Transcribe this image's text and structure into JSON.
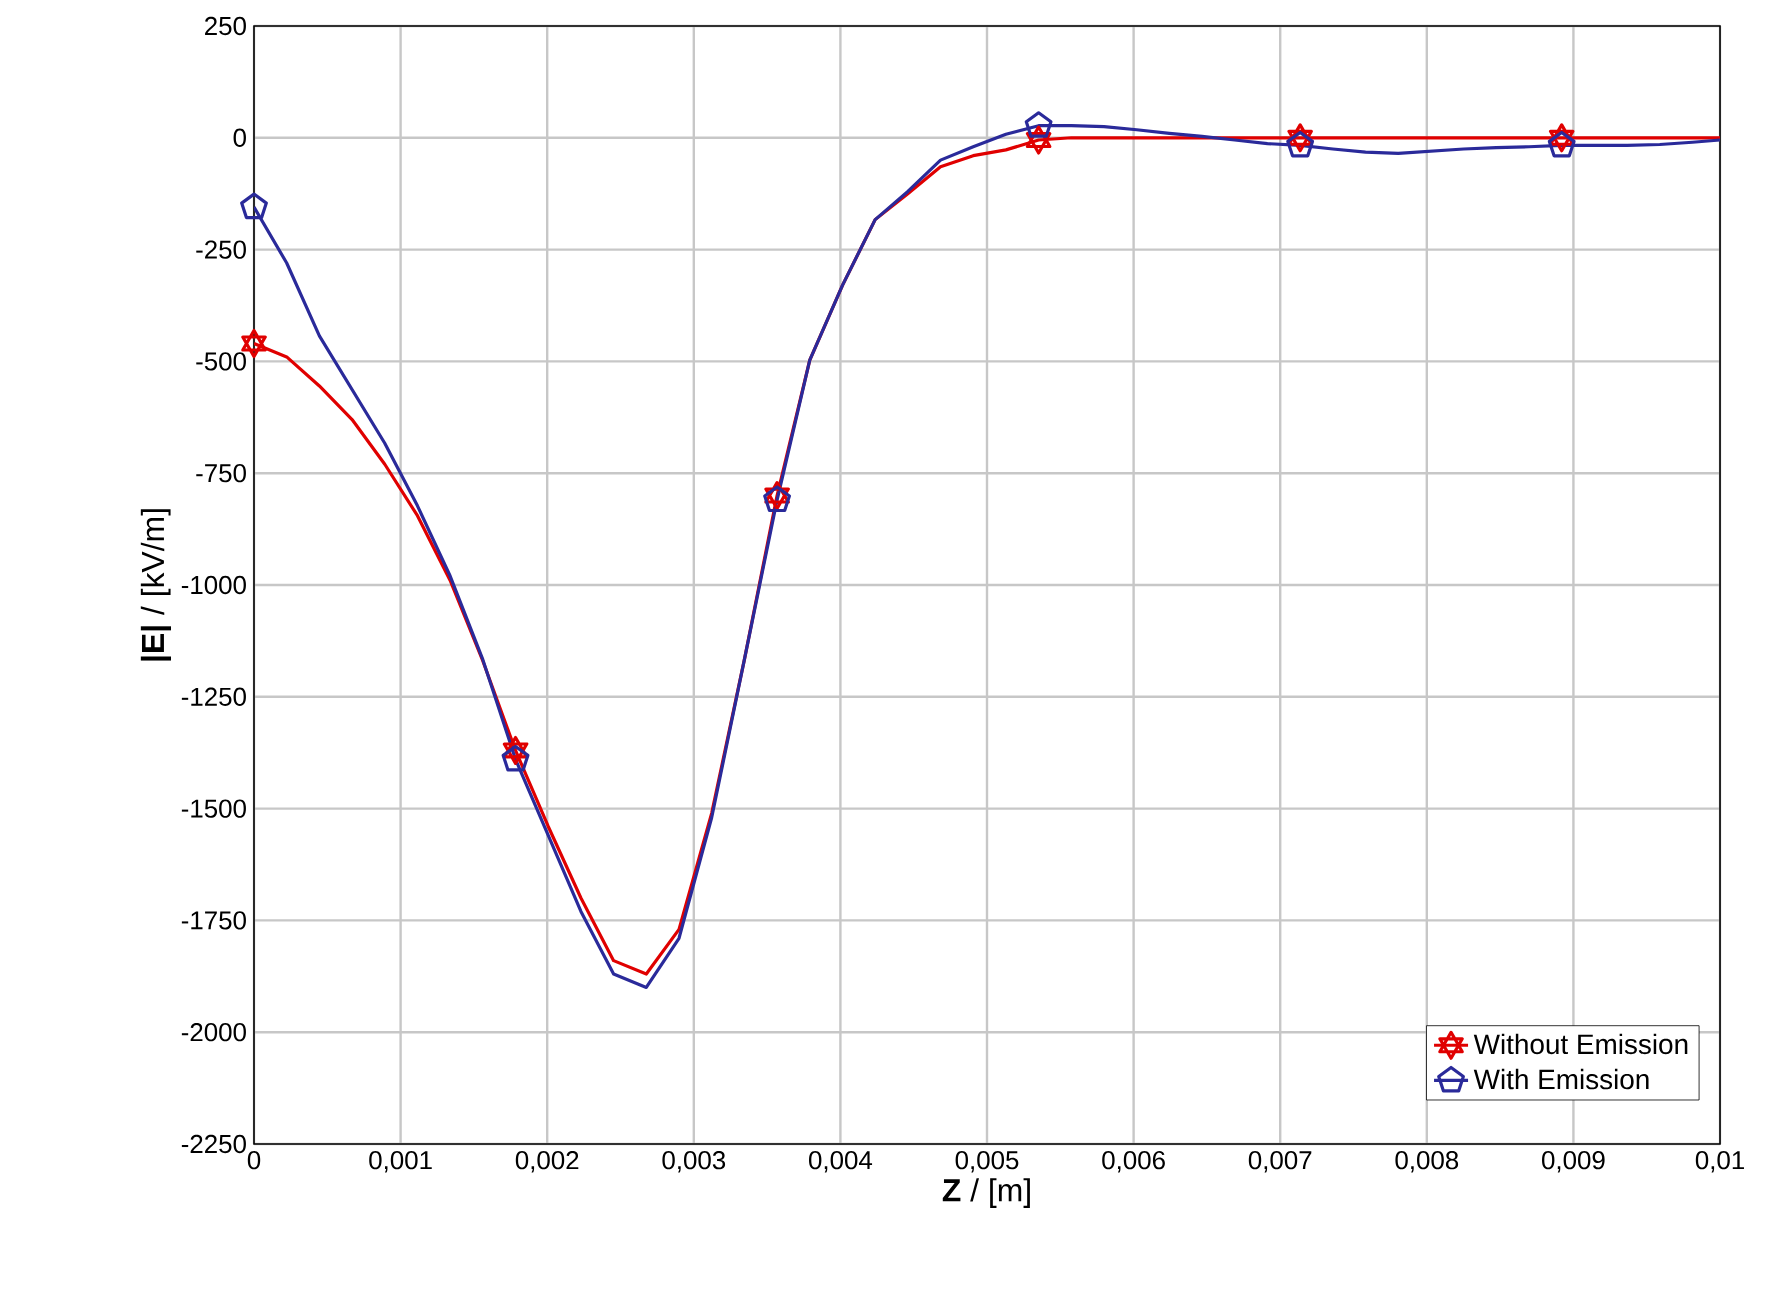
{
  "chart_data": {
    "type": "line",
    "xlabel": "**Z**  / [m]",
    "ylabel": "**|E|** / [kV/m]",
    "x": [
      0,
      0.000223,
      0.000446,
      0.000669,
      0.000892,
      0.001115,
      0.001338,
      0.001561,
      0.001784,
      0.002007,
      0.00223,
      0.002453,
      0.002676,
      0.002899,
      0.003122,
      0.003345,
      0.003568,
      0.003791,
      0.004014,
      0.004237,
      0.00446,
      0.004683,
      0.004906,
      0.005129,
      0.005352,
      0.005575,
      0.005798,
      0.006021,
      0.006244,
      0.006467,
      0.00669,
      0.006913,
      0.007136,
      0.007359,
      0.007582,
      0.007805,
      0.008028,
      0.008251,
      0.008474,
      0.008697,
      0.00892,
      0.009143,
      0.009366,
      0.009589,
      0.009812,
      0.01
    ],
    "series": [
      {
        "name": "Without Emission",
        "color": "#e00000",
        "values": [
          -460,
          -490,
          -555,
          -630,
          -730,
          -845,
          -990,
          -1170,
          -1370,
          -1540,
          -1700,
          -1840,
          -1870,
          -1770,
          -1510,
          -1167,
          -800,
          -497,
          -330,
          -183,
          -125,
          -65,
          -40,
          -27,
          -5,
          0,
          0,
          0,
          0,
          0,
          0,
          0,
          0,
          0,
          0,
          0,
          0,
          0,
          0,
          0,
          0,
          0,
          0,
          0,
          0,
          0
        ]
      },
      {
        "name": "With Emission",
        "color": "#2a2a9a",
        "values": [
          -155,
          -280,
          -443,
          -563,
          -683,
          -823,
          -980,
          -1167,
          -1390,
          -1560,
          -1730,
          -1870,
          -1900,
          -1790,
          -1520,
          -1167,
          -810,
          -497,
          -330,
          -183,
          -120,
          -50,
          -20,
          8,
          27,
          27,
          25,
          18,
          10,
          3,
          -5,
          -13,
          -17,
          -25,
          -32,
          -35,
          -30,
          -25,
          -22,
          -20,
          -17,
          -17,
          -17,
          -15,
          -10,
          -5
        ]
      }
    ],
    "xlim": [
      0,
      0.01
    ],
    "ylim": [
      -2250,
      250
    ],
    "xticks": [
      0,
      {
        "value": 0.001,
        "label": "0,001"
      },
      {
        "value": 0.002,
        "label": "0,002"
      },
      {
        "value": 0.003,
        "label": "0,003"
      },
      {
        "value": 0.004,
        "label": "0,004"
      },
      {
        "value": 0.005,
        "label": "0,005"
      },
      {
        "value": 0.006,
        "label": "0,006"
      },
      {
        "value": 0.007,
        "label": "0,007"
      },
      {
        "value": 0.008,
        "label": "0,008"
      },
      {
        "value": 0.009,
        "label": "0,009"
      },
      {
        "value": 0.01,
        "label": "0,01"
      }
    ],
    "yticks": [
      -2250,
      -2000,
      -1750,
      -1500,
      -1250,
      -1000,
      -750,
      -500,
      -250,
      0,
      250
    ],
    "grid": true,
    "legend": "bottom right",
    "line_style": "solid"
  }
}
